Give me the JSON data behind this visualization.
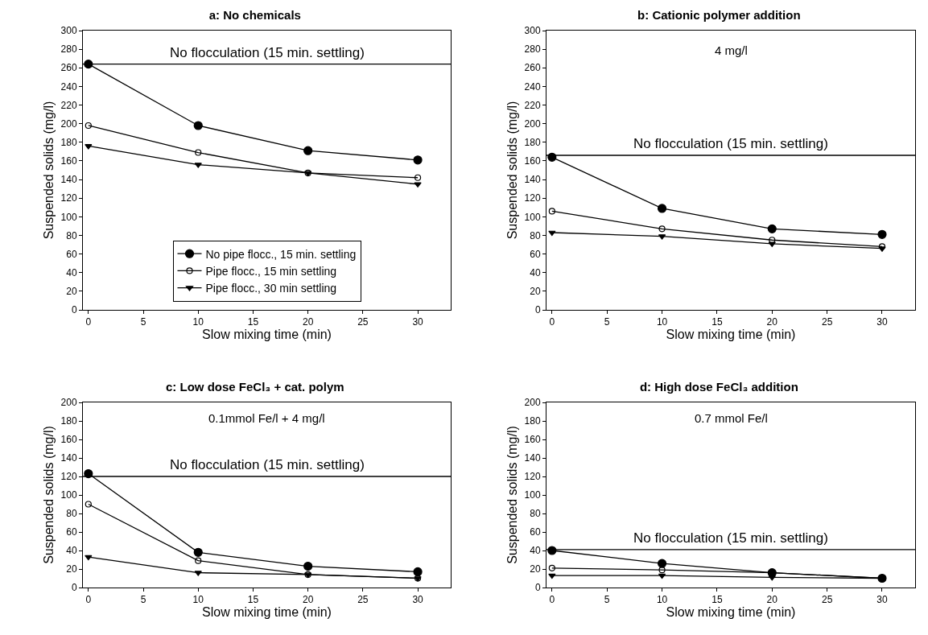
{
  "chart_data": [
    {
      "type": "line",
      "title": "a: No chemicals",
      "xlabel": "Slow mixing time (min)",
      "ylabel": "Suspended solids (mg/l)",
      "x": [
        0,
        10,
        20,
        30
      ],
      "xlim": [
        -0.5,
        33
      ],
      "xticks": [
        0,
        5,
        10,
        15,
        20,
        25,
        30
      ],
      "ylim": [
        0,
        300
      ],
      "yticks": [
        0,
        20,
        40,
        60,
        80,
        100,
        120,
        140,
        160,
        180,
        200,
        220,
        240,
        260,
        280,
        300
      ],
      "grid": false,
      "legend": "bottom",
      "series": [
        {
          "name": "No pipe flocc., 15 min. settling",
          "color": "#000000",
          "marker": "circle",
          "values": [
            264,
            198,
            171,
            161
          ]
        },
        {
          "name": "Pipe flocc., 15 min settling",
          "color": "#000000",
          "marker": "circle-open",
          "values": [
            198,
            169,
            147,
            142
          ]
        },
        {
          "name": "Pipe flocc., 30 min settling",
          "color": "#000000",
          "marker": "triangle",
          "values": [
            176,
            156,
            147,
            135
          ]
        }
      ],
      "ref_lines": [
        {
          "axis": "y",
          "value": 264,
          "label": "No flocculation (15 min. settling)",
          "color": "#000000"
        }
      ]
    },
    {
      "type": "line",
      "title": "b: Cationic polymer addition",
      "xlabel": "Slow mixing time (min)",
      "ylabel": "Suspended solids (mg/l)",
      "x": [
        0,
        10,
        20,
        30
      ],
      "xlim": [
        -0.5,
        33
      ],
      "xticks": [
        0,
        5,
        10,
        15,
        20,
        25,
        30
      ],
      "ylim": [
        0,
        300
      ],
      "yticks": [
        0,
        20,
        40,
        60,
        80,
        100,
        120,
        140,
        160,
        180,
        200,
        220,
        240,
        260,
        280,
        300
      ],
      "grid": false,
      "annotations": [
        "4 mg/l"
      ],
      "series": [
        {
          "color": "#000000",
          "marker": "circle",
          "values": [
            164,
            109,
            87,
            81
          ]
        },
        {
          "color": "#000000",
          "marker": "circle-open",
          "values": [
            106,
            87,
            75,
            68
          ]
        },
        {
          "color": "#000000",
          "marker": "triangle",
          "values": [
            83,
            79,
            71,
            66
          ]
        }
      ],
      "ref_lines": [
        {
          "axis": "y",
          "value": 166,
          "label": "No flocculation (15 min. settling)",
          "color": "#000000"
        }
      ]
    },
    {
      "type": "line",
      "title": "c: Low dose FeCl₃ + cat. polym",
      "xlabel": "Slow mixing time (min)",
      "ylabel": "Suspended solids (mg/l)",
      "x": [
        0,
        10,
        20,
        30
      ],
      "xlim": [
        -0.5,
        33
      ],
      "xticks": [
        0,
        5,
        10,
        15,
        20,
        25,
        30
      ],
      "ylim": [
        0,
        200
      ],
      "yticks": [
        0,
        20,
        40,
        60,
        80,
        100,
        120,
        140,
        160,
        180,
        200
      ],
      "grid": false,
      "annotations": [
        "0.1mmol Fe/l + 4 mg/l"
      ],
      "series": [
        {
          "color": "#000000",
          "marker": "circle",
          "values": [
            123,
            38,
            23,
            17
          ]
        },
        {
          "color": "#000000",
          "marker": "circle-open",
          "values": [
            90,
            29,
            14,
            10
          ]
        },
        {
          "color": "#000000",
          "marker": "triangle",
          "values": [
            33,
            16,
            14,
            10
          ]
        }
      ],
      "ref_lines": [
        {
          "axis": "y",
          "value": 120,
          "label": "No flocculation (15 min. settling)",
          "color": "#000000"
        }
      ]
    },
    {
      "type": "line",
      "title": "d: High dose FeCl₃ addition",
      "xlabel": "Slow mixing time (min)",
      "ylabel": "Suspended solids (mg/l)",
      "x": [
        0,
        10,
        20,
        30
      ],
      "xlim": [
        -0.5,
        33
      ],
      "xticks": [
        0,
        5,
        10,
        15,
        20,
        25,
        30
      ],
      "ylim": [
        0,
        200
      ],
      "yticks": [
        0,
        20,
        40,
        60,
        80,
        100,
        120,
        140,
        160,
        180,
        200
      ],
      "grid": false,
      "annotations": [
        "0.7 mmol Fe/l"
      ],
      "series": [
        {
          "color": "#000000",
          "marker": "circle",
          "values": [
            40,
            26,
            16,
            10
          ]
        },
        {
          "color": "#000000",
          "marker": "circle-open",
          "values": [
            21,
            19,
            16,
            10
          ]
        },
        {
          "color": "#000000",
          "marker": "triangle",
          "values": [
            13,
            13,
            11,
            10
          ]
        }
      ],
      "ref_lines": [
        {
          "axis": "y",
          "value": 41,
          "label": "No flocculation (15 min. settling)",
          "color": "#000000"
        }
      ]
    }
  ]
}
